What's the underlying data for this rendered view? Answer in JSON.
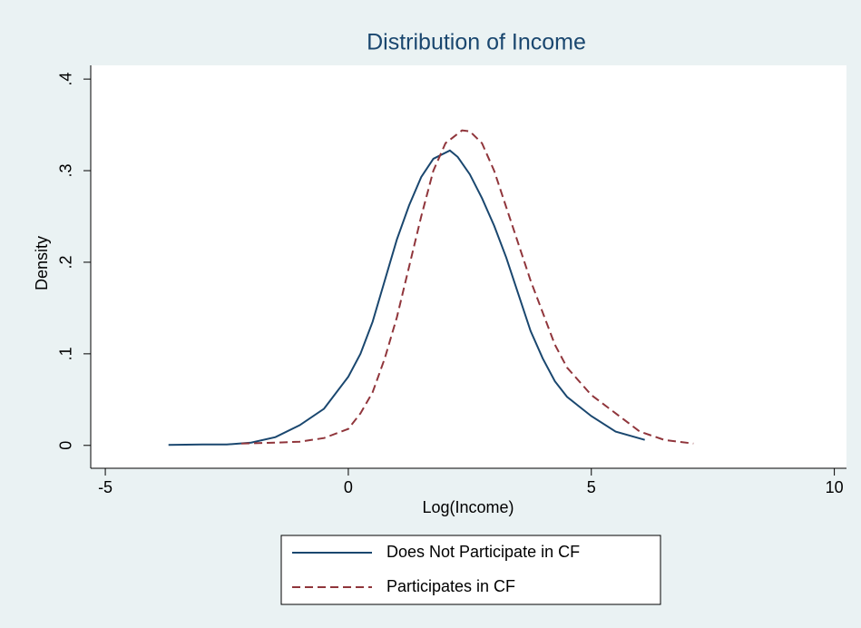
{
  "chart_data": {
    "type": "line",
    "title": "Distribution of Income",
    "xlabel": "Log(Income)",
    "ylabel": "Density",
    "xlim": [
      -5.3,
      10.25
    ],
    "ylim": [
      -0.025,
      0.415
    ],
    "xticks": [
      -5,
      0,
      5,
      10
    ],
    "yticks": [
      0,
      {
        "value": 0.1,
        "label": ".1"
      },
      {
        "value": 0.2,
        "label": ".2"
      },
      {
        "value": 0.3,
        "label": ".3"
      },
      {
        "value": 0.4,
        "label": ".4"
      }
    ],
    "grid": false,
    "legend": "bottom",
    "series": [
      {
        "name": "Does Not Participate in CF",
        "color": "#1a476f",
        "dash": "solid",
        "x": [
          -3.7,
          -3,
          -2.5,
          -2,
          -1.5,
          -1,
          -0.5,
          0,
          0.25,
          0.5,
          0.75,
          1,
          1.25,
          1.5,
          1.75,
          2.09,
          2.25,
          2.5,
          2.75,
          3,
          3.25,
          3.5,
          3.75,
          4,
          4.25,
          4.5,
          5,
          5.5,
          6.1
        ],
        "values": [
          0.0005,
          0.001,
          0.001,
          0.003,
          0.009,
          0.022,
          0.04,
          0.075,
          0.1,
          0.135,
          0.18,
          0.225,
          0.262,
          0.293,
          0.313,
          0.322,
          0.315,
          0.296,
          0.27,
          0.24,
          0.205,
          0.165,
          0.125,
          0.095,
          0.07,
          0.053,
          0.032,
          0.015,
          0.006
        ]
      },
      {
        "name": "Participates in CF",
        "color": "#90353b",
        "dash": "dashed",
        "x": [
          -2.2,
          -1.5,
          -1,
          -0.5,
          0,
          0.25,
          0.5,
          0.75,
          1,
          1.25,
          1.5,
          1.75,
          2,
          2.34,
          2.5,
          2.75,
          3,
          3.25,
          3.5,
          3.75,
          4,
          4.25,
          4.5,
          5,
          5.5,
          6,
          6.5,
          7.1
        ],
        "values": [
          0.002,
          0.003,
          0.004,
          0.008,
          0.018,
          0.035,
          0.058,
          0.095,
          0.14,
          0.195,
          0.25,
          0.3,
          0.33,
          0.344,
          0.343,
          0.33,
          0.3,
          0.26,
          0.22,
          0.18,
          0.145,
          0.11,
          0.085,
          0.055,
          0.035,
          0.015,
          0.006,
          0.002
        ]
      }
    ]
  }
}
